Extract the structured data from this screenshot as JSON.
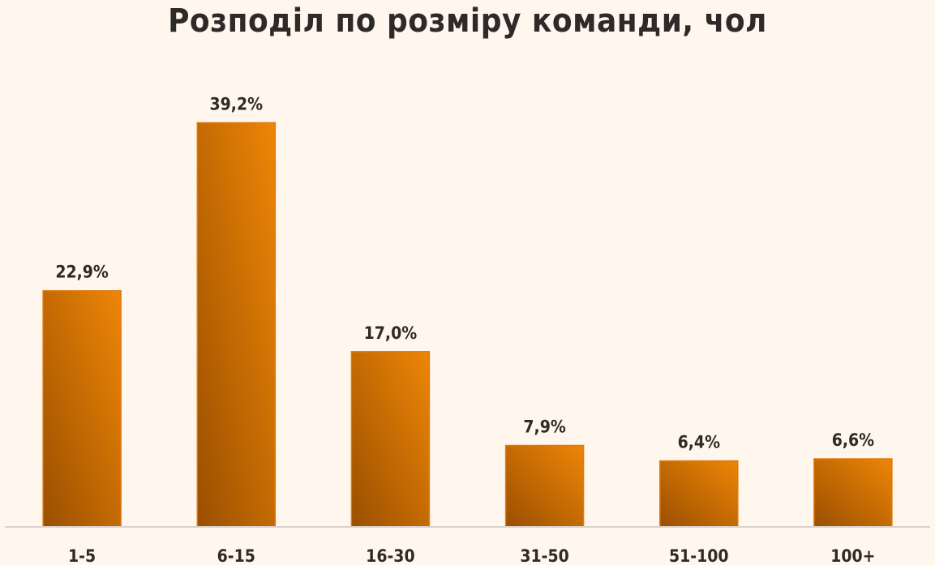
{
  "chart_data": {
    "type": "bar",
    "title": "Розподіл по розміру команди, чол",
    "categories": [
      "1-5",
      "6-15",
      "16-30",
      "31-50",
      "51-100",
      "100+"
    ],
    "values": [
      22.9,
      39.2,
      17.0,
      7.9,
      6.4,
      6.6
    ],
    "value_labels": [
      "22,9%",
      "39,2%",
      "17,0%",
      "7,9%",
      "6,4%",
      "6,6%"
    ],
    "unit": "%",
    "xlabel": "",
    "ylabel": "",
    "ylim": [
      0,
      45
    ],
    "grid": false,
    "legend": "none"
  },
  "colors": {
    "background": "#fff7ed",
    "bar_top": "#ee8607",
    "bar_bottom": "#9a4f00",
    "text": "#2e2a27",
    "baseline": "#d9d2cb"
  }
}
